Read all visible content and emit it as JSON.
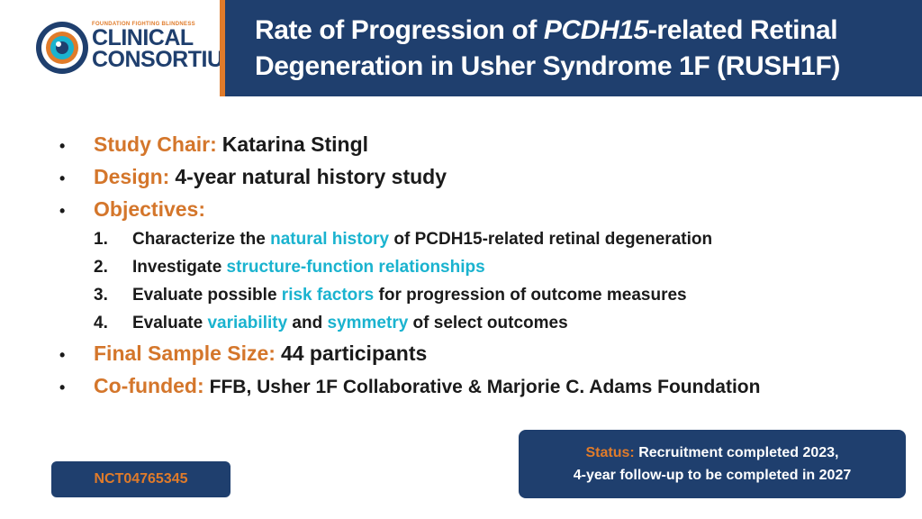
{
  "logo": {
    "small": "FOUNDATION FIGHTING BLINDNESS",
    "line1": "CLINICAL",
    "line2": "CONSORTIUM",
    "icon": "eye-icon"
  },
  "title": {
    "part1": "Rate of Progression of ",
    "italic": "PCDH15",
    "part2": "-related Retinal Degeneration in Usher Syndrome 1F (RUSH1F)"
  },
  "items": {
    "chair_label": "Study Chair:",
    "chair_value": "Katarina Stingl",
    "design_label": "Design:",
    "design_value": "4-year natural history study",
    "objectives_label": "Objectives:",
    "objectives": [
      {
        "num": "1.",
        "pre": "Characterize the ",
        "hl1": "natural history",
        "mid": " of PCDH15-related retinal degeneration"
      },
      {
        "num": "2.",
        "pre": "Investigate ",
        "hl1": "structure-function relationships"
      },
      {
        "num": "3.",
        "pre": "Evaluate possible ",
        "hl1": "risk factors",
        "mid": " for progression of outcome measures"
      },
      {
        "num": "4.",
        "pre": "Evaluate ",
        "hl1": "variability",
        "mid": " and ",
        "hl2": "symmetry",
        "post": " of select outcomes"
      }
    ],
    "sample_label": "Final Sample Size:",
    "sample_value": "44 participants",
    "cofunded_label": "Co-funded:",
    "cofunded_value": "FFB, Usher 1F Collaborative & Marjorie C. Adams Foundation"
  },
  "status": {
    "label": "Status:",
    "line1": "Recruitment completed 2023,",
    "line2": "4-year follow-up to be completed in 2027"
  },
  "nct": "NCT04765345",
  "colors": {
    "navy": "#1f3f6e",
    "orange": "#e07b2a",
    "cyan": "#1ab3cf"
  }
}
